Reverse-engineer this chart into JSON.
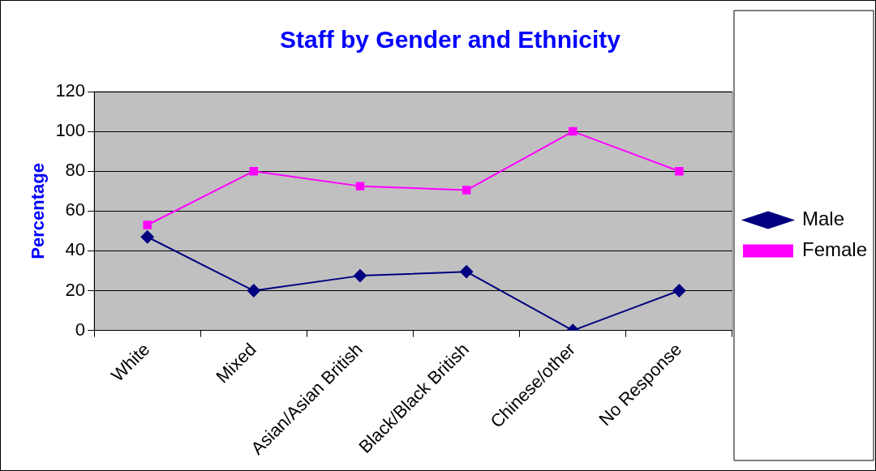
{
  "chart_data": {
    "type": "line",
    "title": "Staff by Gender and Ethnicity",
    "ylabel": "Percentage",
    "categories": [
      "White",
      "Mixed",
      "Asian/Asian British",
      "Black/Black British",
      "Chinese/other",
      "No Response"
    ],
    "series": [
      {
        "name": "Male",
        "color": "#000080",
        "marker": "diamond",
        "values": [
          47,
          20,
          27.5,
          29.5,
          0,
          20
        ]
      },
      {
        "name": "Female",
        "color": "#ff00ff",
        "marker": "square",
        "values": [
          53,
          80,
          72.5,
          70.5,
          100,
          80
        ]
      }
    ],
    "ylim": [
      0,
      120
    ],
    "yticks": [
      0,
      20,
      40,
      60,
      80,
      100,
      120
    ],
    "grid": "y",
    "legend": "right",
    "line_style": "solid"
  }
}
